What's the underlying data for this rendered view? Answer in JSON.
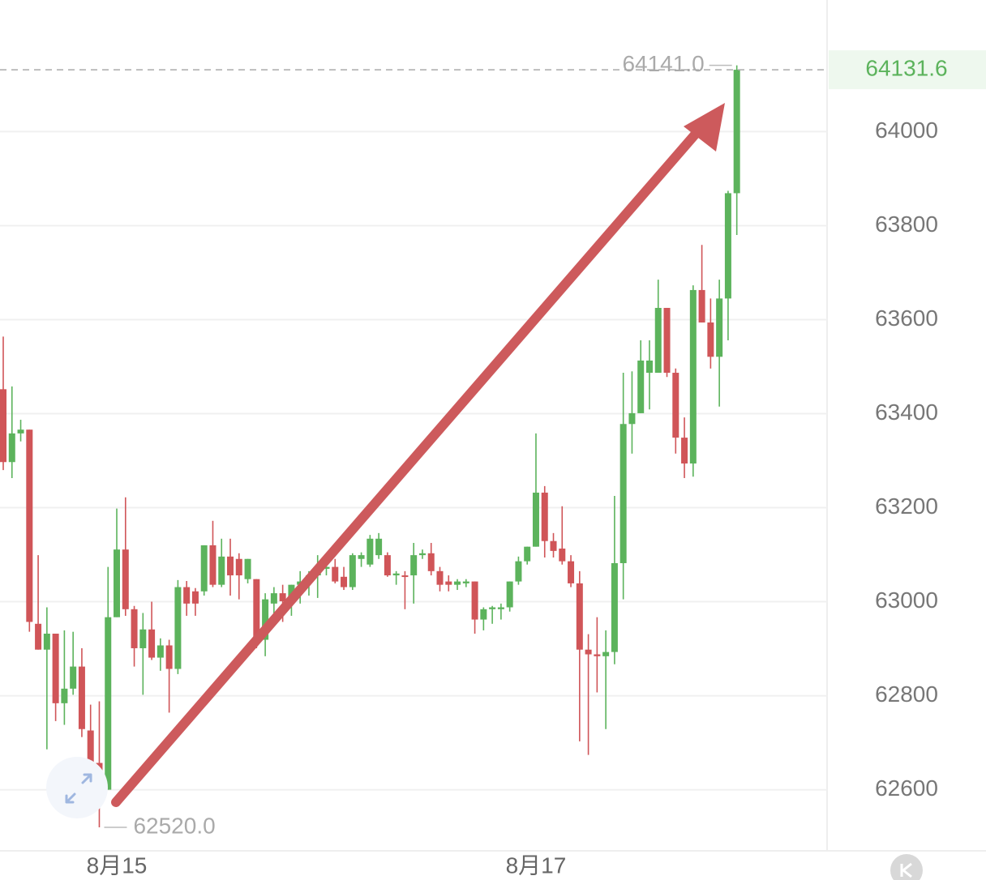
{
  "chart_data": {
    "type": "candlestick",
    "categories": [
      null,
      null,
      null,
      null,
      null,
      null,
      null,
      null,
      null,
      null,
      null,
      null,
      null,
      "8月15",
      null,
      null,
      null,
      null,
      null,
      null,
      null,
      null,
      null,
      null,
      null,
      null,
      null,
      null,
      null,
      null,
      null,
      null,
      null,
      null,
      null,
      null,
      null,
      null,
      null,
      null,
      null,
      null,
      null,
      null,
      null,
      null,
      null,
      null,
      null,
      null,
      null,
      null,
      null,
      null,
      null,
      null,
      null,
      null,
      null,
      null,
      null,
      "8月17",
      null,
      null,
      null,
      null,
      null,
      null,
      null,
      null,
      null,
      null,
      null,
      null,
      null,
      null,
      null,
      null,
      null,
      null,
      null,
      null,
      null,
      null,
      null
    ],
    "open": [
      63452,
      63297,
      63358,
      63366,
      62953,
      62898,
      62932,
      62784,
      62815,
      62862,
      62726,
      62657,
      62600,
      62967,
      63111,
      62984,
      62901,
      62941,
      62881,
      62907,
      62857,
      63031,
      63022,
      63022,
      63120,
      63036,
      63096,
      63091,
      63048,
      63048,
      62919,
      62996,
      63018,
      63001,
      63036,
      63043,
      63056,
      63070,
      63074,
      63053,
      63031,
      63091,
      63079,
      63099,
      63099,
      63056,
      63056,
      63056,
      63099,
      63103,
      63065,
      63043,
      63036,
      63039,
      63043,
      62962,
      62984,
      62984,
      62988,
      63043,
      63086,
      63117,
      63232,
      63129,
      63113,
      63086,
      63039,
      62898,
      62888,
      62884,
      62893,
      63082,
      63378,
      63401,
      63487,
      63487,
      63625,
      63487,
      63349,
      63294,
      63663,
      63594,
      63521,
      63645,
      63869
    ],
    "high": [
      63564,
      63458,
      63387,
      63366,
      63099,
      62988,
      62932,
      62939,
      62936,
      62901,
      62781,
      62788,
      63074,
      63198,
      63222,
      62991,
      62976,
      63000,
      62922,
      62919,
      63046,
      63044,
      63029,
      63120,
      63172,
      63134,
      63134,
      63103,
      63091,
      63048,
      63018,
      63031,
      63036,
      63036,
      63065,
      63065,
      63099,
      63091,
      63091,
      63074,
      63103,
      63105,
      63142,
      63146,
      63105,
      63065,
      63065,
      63125,
      63111,
      63125,
      63074,
      63056,
      63048,
      63048,
      63043,
      62988,
      62991,
      62996,
      63043,
      63096,
      63117,
      63358,
      63246,
      63146,
      63203,
      63099,
      63065,
      62931,
      62967,
      62939,
      63225,
      63487,
      63490,
      63556,
      63556,
      63685,
      63625,
      63496,
      63392,
      63673,
      63759,
      63645,
      63685,
      63874,
      64141
    ],
    "low": [
      63280,
      63263,
      63341,
      62936,
      62898,
      62686,
      62746,
      62738,
      62802,
      62712,
      62657,
      62520,
      62600,
      62967,
      62970,
      62862,
      62802,
      62876,
      62853,
      62764,
      62846,
      62970,
      62970,
      63013,
      63031,
      63031,
      63013,
      63005,
      63039,
      62901,
      62884,
      62957,
      62957,
      62970,
      62996,
      63013,
      63008,
      63056,
      63039,
      63025,
      63025,
      63074,
      63074,
      63091,
      63053,
      63036,
      62984,
      62996,
      63091,
      63056,
      63022,
      63022,
      63025,
      63031,
      62932,
      62939,
      62953,
      62962,
      62979,
      63036,
      63079,
      63117,
      63094,
      63094,
      63079,
      63031,
      62703,
      62674,
      62807,
      62729,
      62867,
      63005,
      63315,
      63401,
      63409,
      63487,
      63478,
      63315,
      63263,
      63266,
      63594,
      63496,
      63415,
      63556,
      63780
    ],
    "close": [
      63297,
      63358,
      63366,
      62957,
      62898,
      62932,
      62784,
      62815,
      62862,
      62729,
      62657,
      62600,
      62967,
      63111,
      62984,
      62901,
      62941,
      62881,
      62907,
      62857,
      63031,
      62996,
      62996,
      63120,
      63036,
      63096,
      63056,
      63056,
      63091,
      62919,
      63005,
      63018,
      63001,
      63036,
      63043,
      63056,
      63074,
      63074,
      63043,
      63031,
      63099,
      63099,
      63134,
      63134,
      63056,
      63060,
      63053,
      63099,
      63103,
      63065,
      63036,
      63036,
      63043,
      63043,
      62962,
      62984,
      62988,
      62988,
      63043,
      63086,
      63117,
      63232,
      63129,
      63108,
      63086,
      63039,
      62898,
      62888,
      62884,
      62893,
      63082,
      63378,
      63401,
      63513,
      63513,
      63625,
      63487,
      63349,
      63294,
      63663,
      63594,
      63521,
      63645,
      63869,
      64131.6
    ],
    "up_color": "#5cb35c",
    "down_color": "#d05558",
    "ylim": [
      62470,
      64280
    ],
    "yticks": [
      62600,
      62800,
      63000,
      63200,
      63400,
      63600,
      63800,
      64000
    ],
    "grid": true,
    "last_price": 64131.6,
    "extremes": [
      {
        "value": 64141,
        "label": "64141.0"
      },
      {
        "value": 62520,
        "label": "62520.0"
      }
    ]
  }
}
